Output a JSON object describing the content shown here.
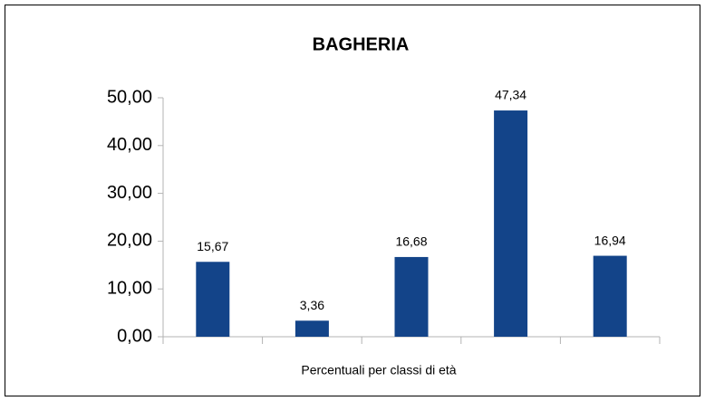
{
  "chart_data": {
    "type": "bar",
    "title": "BAGHERIA",
    "x_label": "Percentuali per classi di età",
    "categories": [
      null,
      null,
      null,
      null,
      null
    ],
    "values": [
      15.67,
      3.36,
      16.68,
      47.34,
      16.94
    ],
    "value_labels": [
      "15,67",
      "3,36",
      "16,68",
      "47,34",
      "16,94"
    ],
    "color": "#134489",
    "ylim": [
      0,
      50
    ],
    "yticks": [
      {
        "value": 0,
        "label": "0,00"
      },
      {
        "value": 10,
        "label": "10,00"
      },
      {
        "value": 20,
        "label": "20,00"
      },
      {
        "value": 30,
        "label": "30,00"
      },
      {
        "value": 40,
        "label": "40,00"
      },
      {
        "value": 50,
        "label": "50,00"
      }
    ],
    "grid": false
  }
}
